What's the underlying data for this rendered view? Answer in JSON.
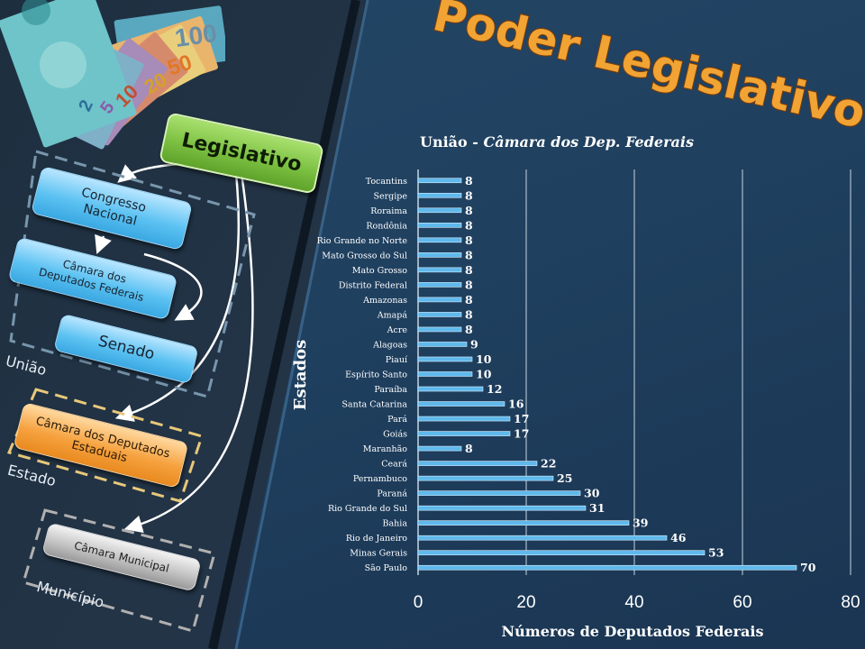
{
  "header": {
    "title": "Poder Legislativo"
  },
  "diagram": {
    "root": "Legislativo",
    "congress": "Congresso Nacional",
    "camara_federal": "Câmara dos Deputados Federais",
    "senado": "Senado",
    "camara_estadual": "Câmara dos Deputados Estaduais",
    "camara_municipal": "Câmara Municipal",
    "group_uniao": "União",
    "group_estado": "Estado",
    "group_municipio": "Município"
  },
  "banknotes": [
    "100",
    "50",
    "20",
    "10",
    "5",
    "2"
  ],
  "colors": {
    "bar": "#5fb9ec",
    "title": "#f5a623",
    "background": "#22364d",
    "gold": "#f1a334"
  },
  "chart_data": {
    "type": "bar",
    "orientation": "horizontal",
    "title_prefix": "União - ",
    "title_italic": "Câmara dos Dep. Federais",
    "xlabel": "Números de Deputados Federais",
    "ylabel": "Estados",
    "xlim": [
      0,
      80
    ],
    "xticks": [
      "0",
      "20",
      "40",
      "60",
      "80"
    ],
    "grid": true,
    "categories": [
      "Tocantins",
      "Sergipe",
      "Roraima",
      "Rondônia",
      "Rio Grande no Norte",
      "Mato Grosso do Sul",
      "Mato Grosso",
      "Distrito Federal",
      "Amazonas",
      "Amapá",
      "Acre",
      "Alagoas",
      "Piauí",
      "Espírito Santo",
      "Paraíba",
      "Santa Catarina",
      "Pará",
      "Goiás",
      "Maranhão",
      "Ceará",
      "Pernambuco",
      "Paraná",
      "Rio Grande do Sul",
      "Bahia",
      "Rio de Janeiro",
      "Minas Gerais",
      "São Paulo"
    ],
    "values": [
      8,
      8,
      8,
      8,
      8,
      8,
      8,
      8,
      8,
      8,
      8,
      9,
      10,
      10,
      12,
      16,
      17,
      17,
      8,
      22,
      25,
      30,
      31,
      39,
      46,
      53,
      70
    ]
  }
}
